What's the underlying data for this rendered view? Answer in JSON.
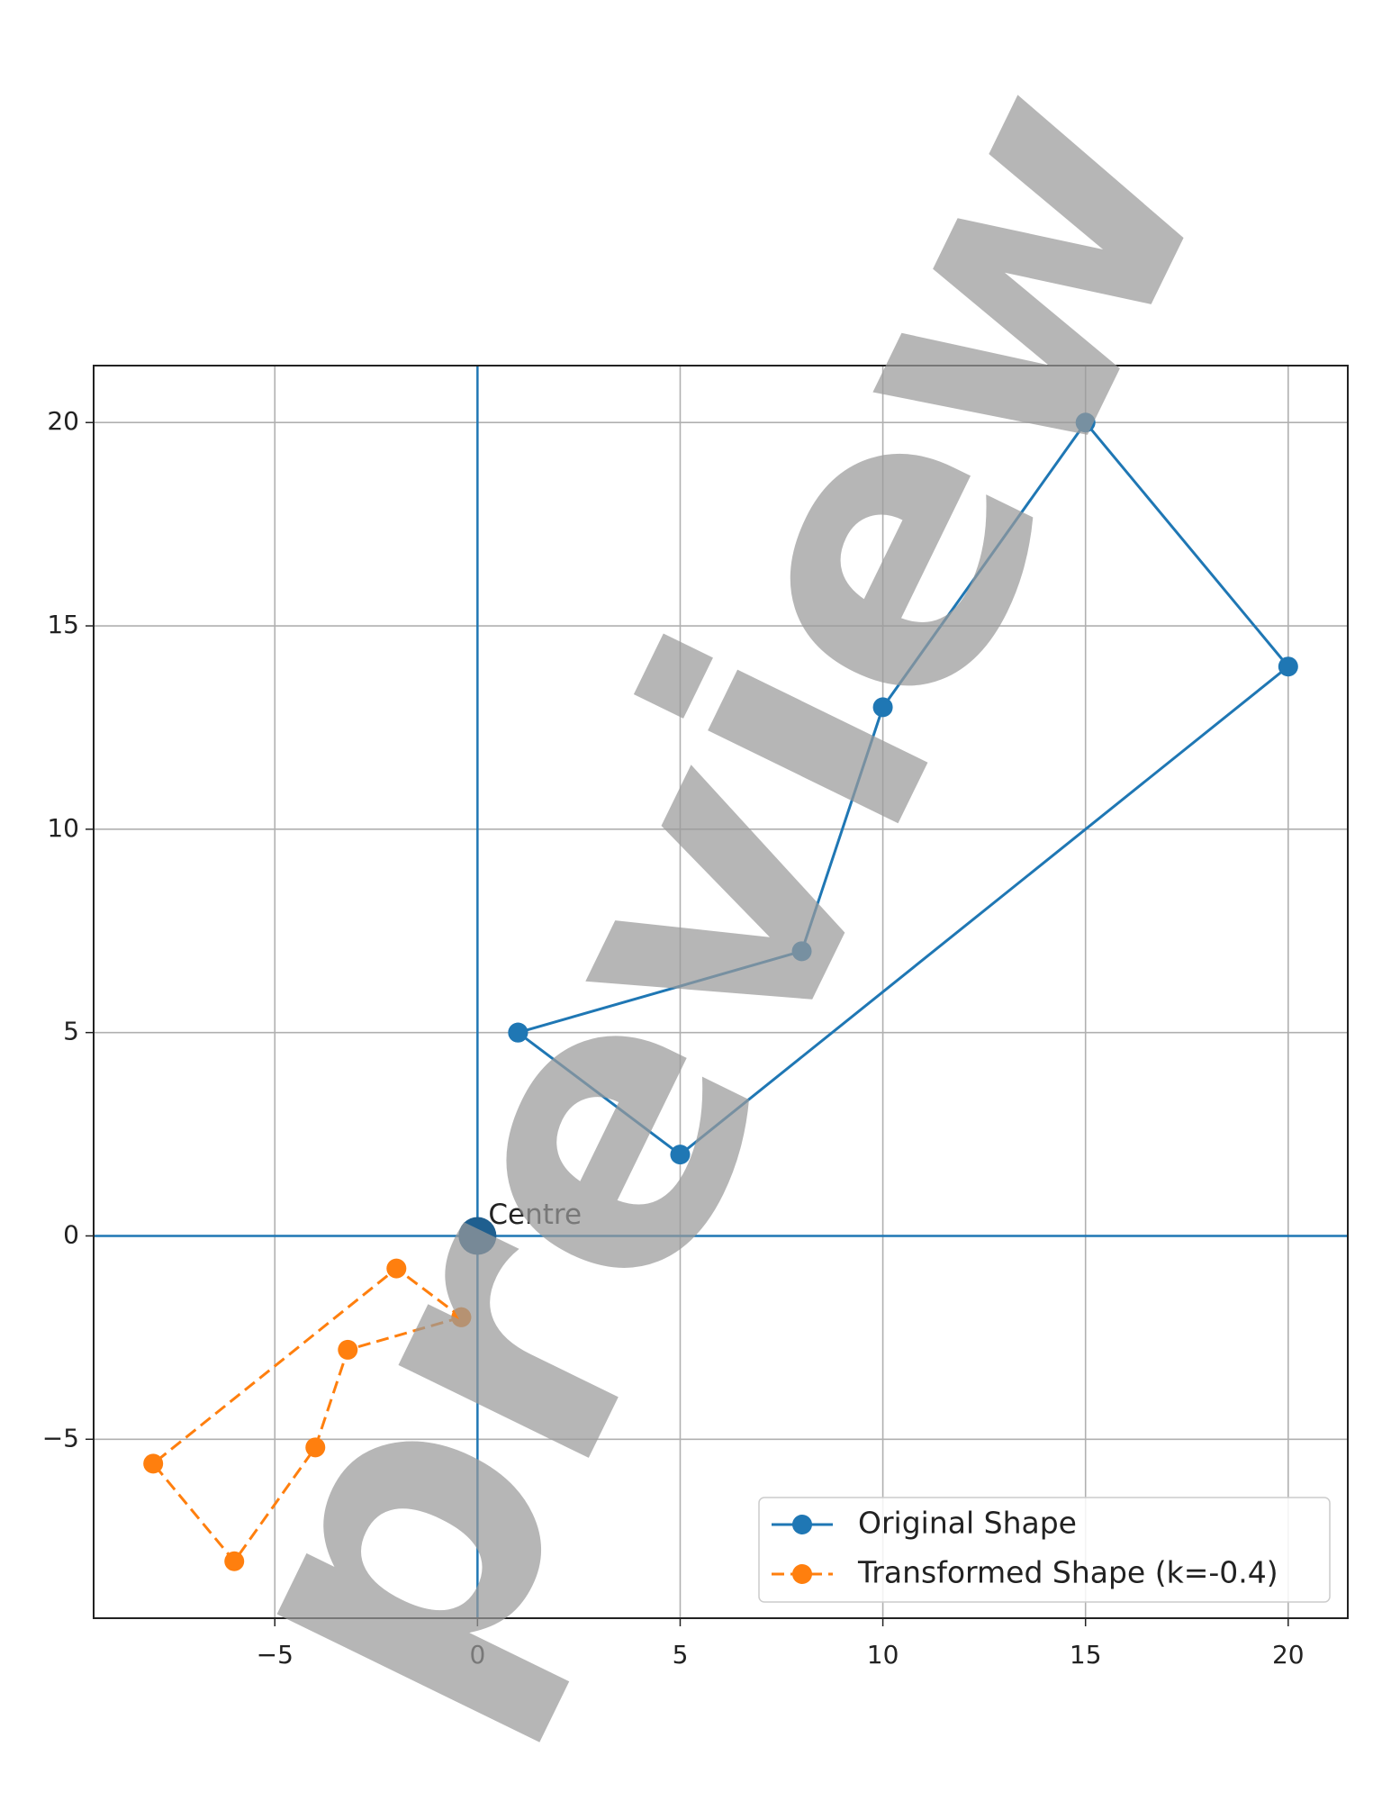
{
  "chart_data": {
    "type": "line",
    "series": [
      {
        "name": "Original Shape",
        "color": "#1f77b4",
        "dash": false,
        "x": [
          1,
          8,
          10,
          15,
          20,
          5,
          1
        ],
        "y": [
          5,
          7,
          13,
          20,
          14,
          2,
          5
        ]
      },
      {
        "name": "Transformed Shape (k=-0.4)",
        "color": "#ff7f0e",
        "dash": true,
        "x": [
          -0.4,
          -3.2,
          -4,
          -6,
          -8,
          -2,
          -0.4
        ],
        "y": [
          -2,
          -2.8,
          -5.2,
          -8,
          -5.6,
          -0.8,
          -2
        ]
      }
    ],
    "centre": {
      "label": "Centre",
      "x": 0,
      "y": 0,
      "color": "#1f5f8f"
    },
    "axes_lines_color": "#1f77b4",
    "xlim": [
      -9.47,
      21.47
    ],
    "ylim": [
      -9.4,
      21.4
    ],
    "xticks": [
      {
        "value": -5,
        "label": "−5"
      },
      0,
      5,
      10,
      15,
      20
    ],
    "yticks": [
      {
        "value": -5,
        "label": "−5"
      },
      0,
      5,
      10,
      15,
      20
    ],
    "grid": true,
    "legend": "lower right",
    "watermark": "preview"
  }
}
